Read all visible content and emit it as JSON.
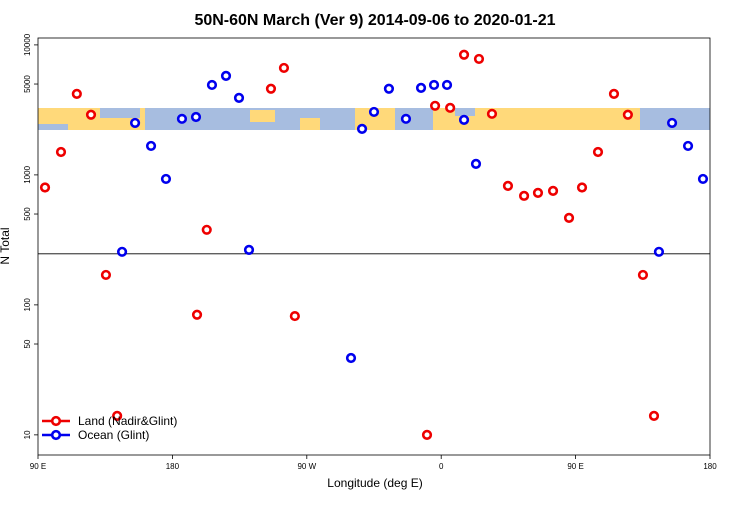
{
  "chart_data": {
    "type": "scatter",
    "title": "50N-60N March (Ver 9)   2014-09-06 to 2020-01-21",
    "x_label": "Longitude (deg E)",
    "y_label": "N Total",
    "ylog": true,
    "xlim": [
      90,
      540
    ],
    "ylim": [
      7,
      11300
    ],
    "xticks": [
      {
        "value": 90,
        "label": "90 E"
      },
      180,
      {
        "value": 270,
        "label": "90 W"
      },
      {
        "value": 360,
        "label": "0"
      },
      {
        "value": 450,
        "label": "90 E"
      },
      {
        "value": 540,
        "label": "180"
      }
    ],
    "yticks": [
      10,
      50,
      100,
      500,
      1000,
      5000,
      10000
    ],
    "reference_line": 247,
    "legend": "bottom-left",
    "series": [
      {
        "name": "Land (Nadir&Glint)",
        "color": "#ee0000",
        "x": [
          94.7,
          105.4,
          116,
          125.5,
          135.5,
          143,
          196.5,
          203,
          246,
          254.7,
          262,
          350.5,
          355.9,
          366,
          375.3,
          385.3,
          394,
          404.7,
          415.5,
          424.8,
          434.9,
          445.6,
          454.3,
          465,
          475.7,
          485,
          495.1,
          502.5
        ],
        "values": [
          800,
          1500,
          4200,
          2900,
          170,
          14,
          84,
          378,
          4600,
          6650,
          82,
          10,
          3400,
          3280,
          8400,
          7800,
          2950,
          823,
          690,
          727,
          753,
          467,
          800,
          1500,
          4200,
          2900,
          170,
          14
        ]
      },
      {
        "name": "Ocean (Glint)",
        "color": "#0000ee",
        "x": [
          146.3,
          155,
          165.7,
          175.7,
          186.4,
          195.8,
          206.5,
          215.9,
          224.6,
          231.3,
          299.6,
          307,
          315,
          325,
          336.4,
          346.5,
          355.2,
          363.9,
          375.3,
          383.3,
          505.8,
          514.6,
          525.3,
          535.3
        ],
        "values": [
          256,
          2510,
          1670,
          931,
          2700,
          2790,
          4920,
          5780,
          3910,
          265,
          39,
          2260,
          3050,
          4600,
          2700,
          4670,
          4920,
          4920,
          2650,
          1215,
          256,
          2510,
          1670,
          931
        ]
      }
    ]
  }
}
